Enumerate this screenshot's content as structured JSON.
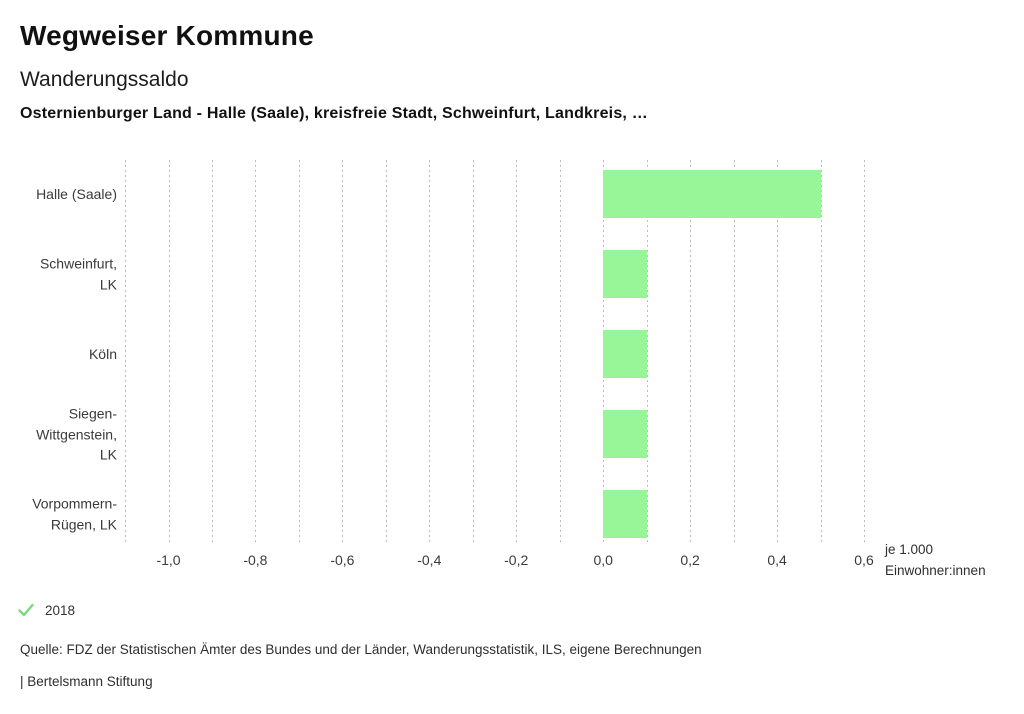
{
  "header": {
    "title": "Wegweiser Kommune",
    "subtitle": "Wanderungssaldo",
    "description": "Osternienburger Land - Halle (Saale), kreisfreie Stadt, Schweinfurt, Landkreis, …"
  },
  "chart_data": {
    "type": "bar",
    "orientation": "horizontal",
    "title": "Wanderungssaldo",
    "categories": [
      "Halle (Saale)",
      "Schweinfurt, LK",
      "Köln",
      "Siegen-Wittgenstein, LK",
      "Vorpommern-Rügen, LK"
    ],
    "category_label_lines": [
      [
        "Halle (Saale)"
      ],
      [
        "Schweinfurt,",
        "LK"
      ],
      [
        "Köln"
      ],
      [
        "Siegen-",
        "Wittgenstein,",
        "LK"
      ],
      [
        "Vorpommern-",
        "Rügen, LK"
      ]
    ],
    "series": [
      {
        "name": "2018",
        "values": [
          0.5,
          0.1,
          0.1,
          0.1,
          0.1
        ]
      }
    ],
    "xlim": [
      -1.1,
      0.6
    ],
    "x_tick_values": [
      -1.0,
      -0.8,
      -0.6,
      -0.4,
      -0.2,
      0.0,
      0.2,
      0.4,
      0.6
    ],
    "x_tick_labels": [
      "-1,0",
      "-0,8",
      "-0,6",
      "-0,4",
      "-0,2",
      "0,0",
      "0,2",
      "0,4",
      "0,6"
    ],
    "gridline_step": 0.1,
    "grid": "vertical-dotted",
    "legend_position": "bottom-left",
    "unit_label_line1": "je 1.000",
    "unit_label_line2": "Einwohner:innen",
    "bar_color": "#98F598",
    "legend_check_color": "#7DD87D",
    "gridline_color": "#bdbdbd"
  },
  "legend": {
    "label": "2018"
  },
  "footer": {
    "source": "Quelle: FDZ der Statistischen Ämter des Bundes und der Länder, Wanderungsstatistik, ILS, eigene Berechnungen",
    "attribution": "| Bertelsmann Stiftung"
  }
}
